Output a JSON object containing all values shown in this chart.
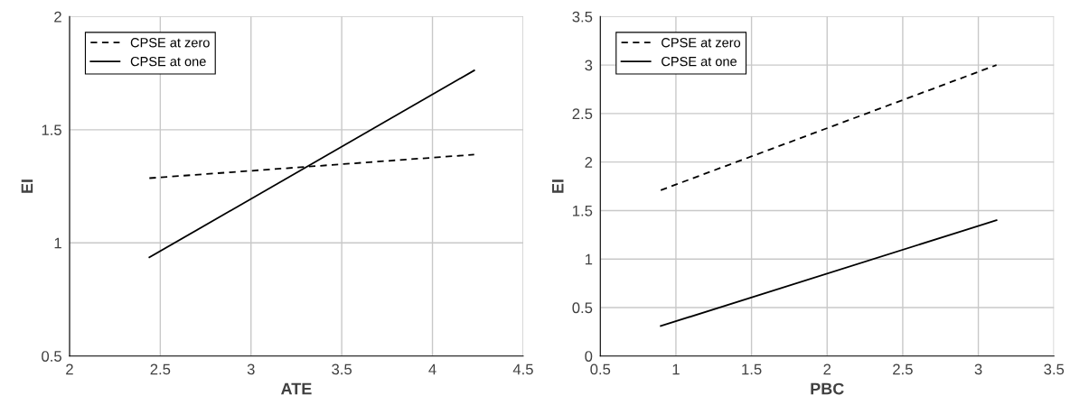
{
  "chart_data": [
    {
      "type": "line",
      "xlabel": "ATE",
      "ylabel": "EI",
      "xlim": [
        2,
        4.5
      ],
      "ylim": [
        0.5,
        2
      ],
      "xticks": [
        2,
        2.5,
        3,
        3.5,
        4,
        4.5
      ],
      "yticks": [
        0.5,
        1,
        1.5,
        2
      ],
      "grid": true,
      "legend": "top left",
      "marker": "none",
      "series": [
        {
          "name": "CPSE at zero",
          "color": "#000000",
          "line_style": "dashed",
          "x": [
            2.44,
            4.23
          ],
          "values": [
            1.286,
            1.39
          ]
        },
        {
          "name": "CPSE at one",
          "color": "#000000",
          "line_style": "solid",
          "x": [
            2.44,
            4.23
          ],
          "values": [
            0.936,
            1.762
          ]
        }
      ]
    },
    {
      "type": "line",
      "xlabel": "PBC",
      "ylabel": "EI",
      "xlim": [
        0.5,
        3.5
      ],
      "ylim": [
        0,
        3.5
      ],
      "xticks": [
        0.5,
        1,
        1.5,
        2,
        2.5,
        3,
        3.5
      ],
      "yticks": [
        0,
        0.5,
        1,
        1.5,
        2,
        2.5,
        3,
        3.5
      ],
      "grid": true,
      "legend": "top left",
      "marker": "none",
      "series": [
        {
          "name": "CPSE at zero",
          "color": "#000000",
          "line_style": "dashed",
          "x": [
            0.9,
            3.12
          ],
          "values": [
            1.71,
            3.0
          ]
        },
        {
          "name": "CPSE at one",
          "color": "#000000",
          "line_style": "solid",
          "x": [
            0.9,
            3.12
          ],
          "values": [
            0.31,
            1.4
          ]
        }
      ]
    }
  ]
}
